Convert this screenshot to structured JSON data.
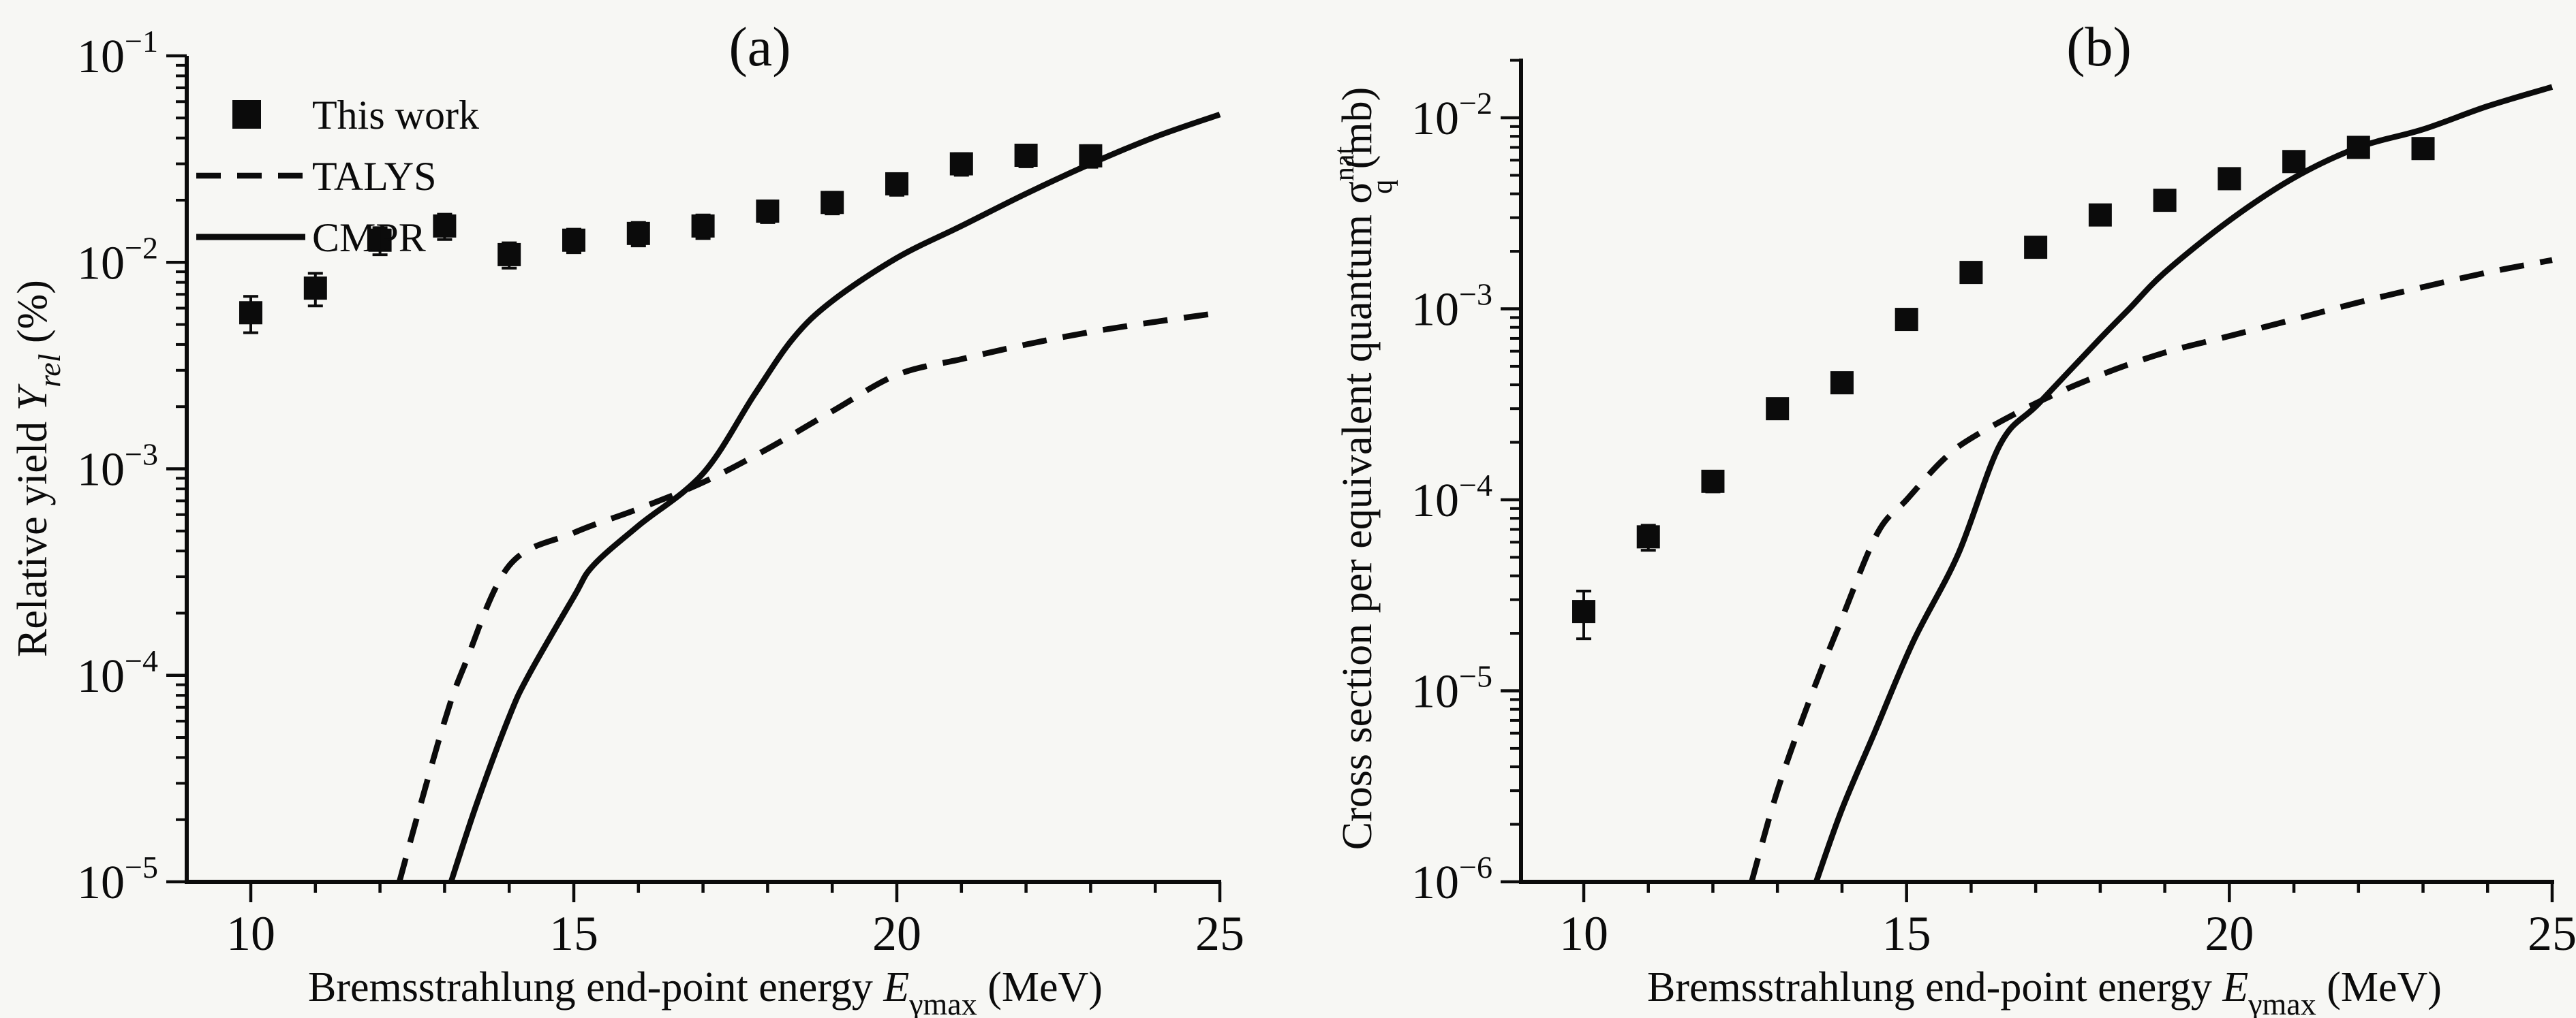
{
  "figure": {
    "background": "#f7f7f4",
    "ink": "#0b0b0b"
  },
  "chart_data": [
    {
      "type": "scatter",
      "panel": "a",
      "title": "(a)",
      "xlabel_parts": [
        {
          "t": "Bremsstrahlung end-point energy ",
          "style": "plain"
        },
        {
          "t": "E",
          "style": "italic"
        },
        {
          "t": "γmax",
          "style": "sub"
        },
        {
          "t": " (MeV)",
          "style": "plain"
        }
      ],
      "ylabel_parts": [
        {
          "t": "Relative yield ",
          "style": "plain"
        },
        {
          "t": "Y",
          "style": "italic"
        },
        {
          "t": "rel",
          "style": "italic-sub"
        },
        {
          "t": " (%)",
          "style": "plain"
        }
      ],
      "xlim": [
        9,
        25
      ],
      "ylim_log10": [
        -5,
        -1
      ],
      "x_ticks_major": [
        10,
        15,
        20,
        25
      ],
      "x_tick_minor_step": 1,
      "y_tick_exponents": [
        -1,
        -2,
        -3,
        -4,
        -5
      ],
      "grid": "off",
      "legend": {
        "position": "upper-left",
        "entries": [
          "This work",
          "TALYS",
          "CMPR"
        ]
      },
      "series": [
        {
          "name": "This work",
          "kind": "scatter",
          "marker": "filled-square",
          "x": [
            10,
            11,
            12,
            13,
            14,
            15,
            16,
            17,
            18,
            19,
            20,
            21,
            22,
            23
          ],
          "y": [
            0.0057,
            0.0075,
            0.0128,
            0.015,
            0.0109,
            0.0128,
            0.0138,
            0.015,
            0.0177,
            0.0195,
            0.024,
            0.03,
            0.033,
            0.0328
          ],
          "yerr_rel": [
            0.2,
            0.18,
            0.15,
            0.14,
            0.14,
            0.13,
            0.13,
            0.13,
            0.12,
            0.12,
            0.12,
            0.12,
            0.12,
            0.12
          ]
        },
        {
          "name": "TALYS",
          "kind": "line",
          "style": "dashed",
          "points": [
            [
              12.3,
              1e-05
            ],
            [
              12.6,
              2.2e-05
            ],
            [
              13.0,
              6e-05
            ],
            [
              13.3,
              0.00011
            ],
            [
              14.0,
              0.00034
            ],
            [
              15.0,
              0.00049
            ],
            [
              16.0,
              0.00064
            ],
            [
              17.0,
              0.00086
            ],
            [
              18.0,
              0.00125
            ],
            [
              19.0,
              0.0019
            ],
            [
              20.0,
              0.00285
            ],
            [
              21.0,
              0.0034
            ],
            [
              22.0,
              0.004
            ],
            [
              23.0,
              0.0046
            ],
            [
              24.0,
              0.00515
            ],
            [
              25.0,
              0.0057
            ]
          ]
        },
        {
          "name": "CMPR",
          "kind": "line",
          "style": "solid",
          "points": [
            [
              13.1,
              1e-05
            ],
            [
              13.5,
              2.4e-05
            ],
            [
              14.0,
              6.3e-05
            ],
            [
              14.3,
              0.0001
            ],
            [
              15.0,
              0.00024
            ],
            [
              15.3,
              0.00034
            ],
            [
              16.0,
              0.00053
            ],
            [
              17.0,
              0.00095
            ],
            [
              17.8,
              0.0023
            ],
            [
              18.4,
              0.0043
            ],
            [
              19.0,
              0.0065
            ],
            [
              20.0,
              0.0105
            ],
            [
              21.0,
              0.015
            ],
            [
              22.0,
              0.0215
            ],
            [
              23.0,
              0.03
            ],
            [
              24.0,
              0.0405
            ],
            [
              25.0,
              0.052
            ]
          ]
        }
      ]
    },
    {
      "type": "scatter",
      "panel": "b",
      "title": "(b)",
      "xlabel_parts": [
        {
          "t": "Bremsstrahlung end-point energy ",
          "style": "plain"
        },
        {
          "t": "E",
          "style": "italic"
        },
        {
          "t": "γmax",
          "style": "sub"
        },
        {
          "t": " (MeV)",
          "style": "plain"
        }
      ],
      "ylabel_parts": [
        {
          "t": "Cross section per equivalent quantum ",
          "style": "plain"
        },
        {
          "t": "σ",
          "style": "plain"
        },
        {
          "t": "nat",
          "style": "sup-stack"
        },
        {
          "t": "q",
          "style": "sub-stack"
        },
        {
          "t": " (mb)",
          "style": "plain"
        }
      ],
      "xlim": [
        9,
        25
      ],
      "ylim_log10": [
        -6,
        -1.69
      ],
      "x_ticks_major": [
        10,
        15,
        20,
        25
      ],
      "x_tick_minor_step": 1,
      "y_tick_exponents": [
        -2,
        -3,
        -4,
        -5,
        -6
      ],
      "grid": "off",
      "legend": null,
      "series": [
        {
          "name": "This work",
          "kind": "scatter",
          "marker": "filled-square",
          "x": [
            10,
            11,
            12,
            13,
            14,
            15,
            16,
            17,
            18,
            19,
            20,
            21,
            22,
            23
          ],
          "y": [
            2.6e-05,
            6.4e-05,
            0.000125,
            0.0003,
            0.00041,
            0.00088,
            0.00155,
            0.0021,
            0.0031,
            0.0037,
            0.0048,
            0.0059,
            0.007,
            0.0069
          ],
          "yerr_rel": [
            0.28,
            0.15,
            0.12,
            0.1,
            0.1,
            0.09,
            0.09,
            0.08,
            0.08,
            0.08,
            0.08,
            0.08,
            0.08,
            0.1
          ]
        },
        {
          "name": "TALYS",
          "kind": "line",
          "style": "dashed",
          "points": [
            [
              12.6,
              1e-06
            ],
            [
              13.0,
              3e-06
            ],
            [
              13.5,
              9e-06
            ],
            [
              14.0,
              2.4e-05
            ],
            [
              14.55,
              6.7e-05
            ],
            [
              15.0,
              0.0001
            ],
            [
              15.55,
              0.00016
            ],
            [
              16.0,
              0.00021
            ],
            [
              17.0,
              0.00032
            ],
            [
              18.0,
              0.00045
            ],
            [
              19.0,
              0.00059
            ],
            [
              20.0,
              0.00072
            ],
            [
              21.0,
              0.00088
            ],
            [
              22.0,
              0.00108
            ],
            [
              23.0,
              0.0013
            ],
            [
              24.0,
              0.00155
            ],
            [
              25.0,
              0.0018
            ]
          ]
        },
        {
          "name": "CMPR",
          "kind": "line",
          "style": "solid",
          "points": [
            [
              13.6,
              1e-06
            ],
            [
              14.0,
              2.4e-06
            ],
            [
              14.5,
              6e-06
            ],
            [
              15.1,
              1.8e-05
            ],
            [
              15.8,
              5.2e-05
            ],
            [
              16.45,
              0.000195
            ],
            [
              17.05,
              0.00032
            ],
            [
              18.0,
              0.0007
            ],
            [
              18.45,
              0.001
            ],
            [
              19.0,
              0.00155
            ],
            [
              20.0,
              0.0029
            ],
            [
              21.0,
              0.00485
            ],
            [
              22.0,
              0.007
            ],
            [
              23.0,
              0.0087
            ],
            [
              24.0,
              0.0115
            ],
            [
              25.0,
              0.0145
            ]
          ]
        }
      ]
    }
  ]
}
